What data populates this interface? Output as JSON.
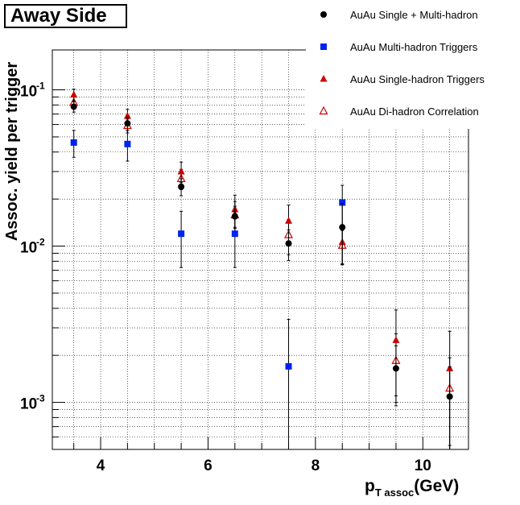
{
  "chart_data": {
    "type": "scatter",
    "title": "Away Side",
    "xlabel_main": "p",
    "xlabel_sub": "T assoc",
    "xlabel_unit": "(GeV)",
    "ylabel": "Assoc. yield per trigger",
    "xlim": [
      3.1,
      10.85
    ],
    "ylim": [
      0.0005,
      0.18
    ],
    "yscale": "log",
    "x_ticks": [
      4,
      6,
      8,
      10
    ],
    "x_tick_labels": [
      "4",
      "6",
      "8",
      "10"
    ],
    "y_ticks": [
      0.001,
      0.01,
      0.1
    ],
    "y_tick_mantissa": "10",
    "y_tick_exponents": [
      "-3",
      "-2",
      "-1"
    ],
    "grid": true,
    "legend_position": "top-right",
    "series": [
      {
        "name": "AuAu Single + Multi-hadron",
        "marker": "circle",
        "color": "#000000",
        "x": [
          3.5,
          4.5,
          5.5,
          6.5,
          7.5,
          8.5,
          9.5,
          10.5
        ],
        "y": [
          0.078,
          0.061,
          0.024,
          0.0155,
          0.0104,
          0.0132,
          0.00165,
          0.00109
        ],
        "err": [
          0.006,
          0.006,
          0.003,
          0.0025,
          0.0023,
          0.0055,
          0.00065,
          0.0006
        ]
      },
      {
        "name": "AuAu Multi-hadron Triggers",
        "marker": "square",
        "color": "#0022ee",
        "x": [
          3.5,
          4.5,
          5.5,
          6.5,
          7.5,
          8.5
        ],
        "y": [
          0.046,
          0.045,
          0.012,
          0.012,
          0.0017,
          0.019
        ],
        "err": [
          0.009,
          0.01,
          0.0047,
          0.0047,
          0.0017,
          0.0055
        ]
      },
      {
        "name": "AuAu Single-hadron Triggers",
        "marker": "triangle",
        "color": "#cc0000",
        "x": [
          3.5,
          4.5,
          5.5,
          6.5,
          7.5,
          8.5,
          9.5,
          10.5
        ],
        "y": [
          0.093,
          0.068,
          0.03,
          0.0172,
          0.0145,
          0.0106,
          0.0025,
          0.00165
        ],
        "err": [
          0.008,
          0.007,
          0.0045,
          0.004,
          0.0038,
          0.003,
          0.0014,
          0.0012
        ]
      },
      {
        "name": "AuAu Di-hadron Correlation",
        "marker": "open-triangle",
        "color": "#cc0000",
        "x": [
          3.5,
          4.5,
          5.5,
          6.5,
          7.5,
          8.5,
          9.5,
          10.5
        ],
        "y": [
          0.083,
          0.059,
          0.027,
          0.0158,
          0.0118,
          0.0101,
          0.00185,
          0.00123
        ],
        "err": [
          0.007,
          0.006,
          0.004,
          0.0035,
          0.003,
          0.0025,
          0.0009,
          0.0007
        ]
      }
    ]
  }
}
